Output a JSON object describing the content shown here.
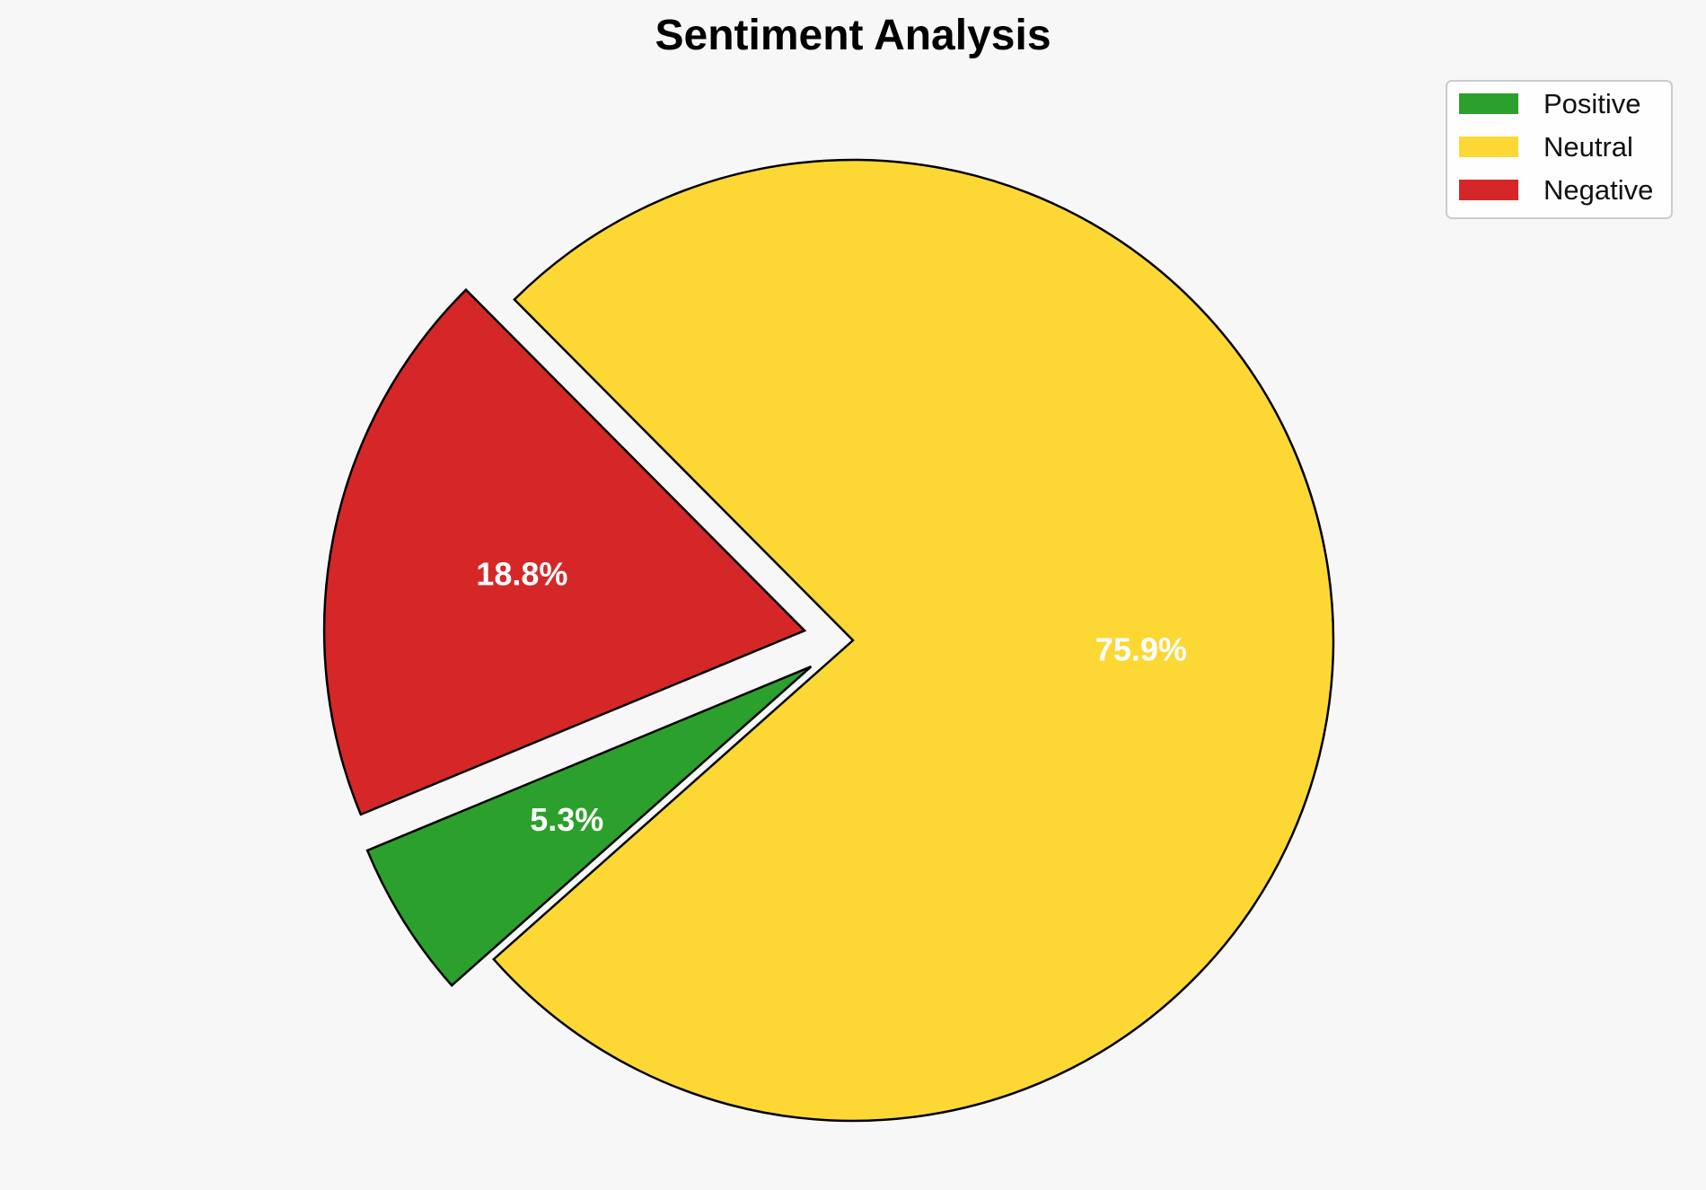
{
  "chart_data": {
    "type": "pie",
    "title": "Sentiment Analysis",
    "legend_position": "top-right",
    "slices": [
      {
        "label": "Positive",
        "value": 5.3,
        "display": "5.3%",
        "color": "#2ca02c",
        "exploded": true
      },
      {
        "label": "Neutral",
        "value": 75.9,
        "display": "75.9%",
        "color": "#fdd835",
        "exploded": false
      },
      {
        "label": "Negative",
        "value": 18.8,
        "display": "18.8%",
        "color": "#d62728",
        "exploded": true
      }
    ],
    "slice_edge_color": "#000000",
    "label_color": "#ffffff",
    "background_color": "#f7f7f7"
  }
}
